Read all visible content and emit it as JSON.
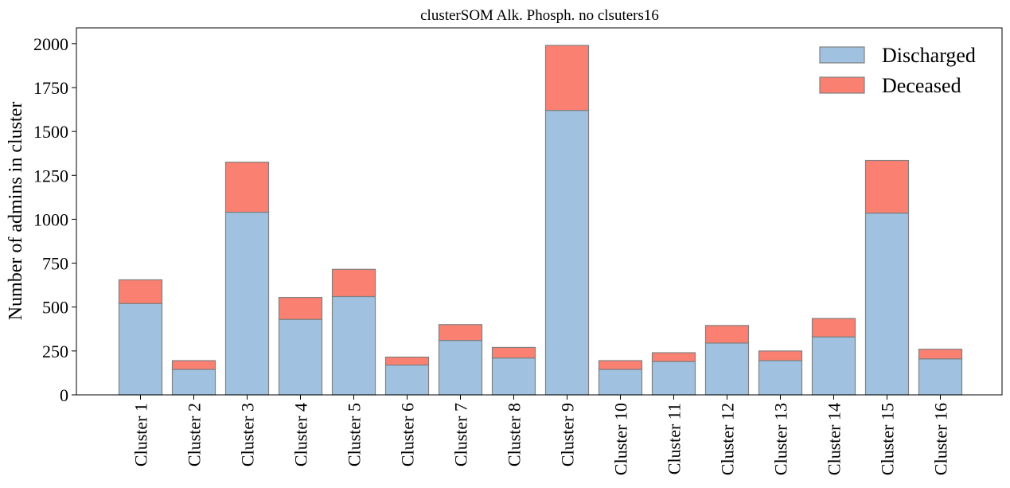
{
  "chart_data": {
    "type": "bar",
    "stacked": true,
    "title": "clusterSOM Alk. Phosph. no clsuters16",
    "xlabel": "",
    "ylabel": "Number of admins in cluster",
    "ylim": [
      0,
      2090
    ],
    "yticks": [
      0,
      250,
      500,
      750,
      1000,
      1250,
      1500,
      1750,
      2000
    ],
    "grid": false,
    "legend_position": "top-right",
    "categories": [
      "Cluster 1",
      "Cluster 2",
      "Cluster 3",
      "Cluster 4",
      "Cluster 5",
      "Cluster 6",
      "Cluster 7",
      "Cluster 8",
      "Cluster 9",
      "Cluster 10",
      "Cluster 11",
      "Cluster 12",
      "Cluster 13",
      "Cluster 14",
      "Cluster 15",
      "Cluster 16"
    ],
    "series": [
      {
        "name": "Discharged",
        "color": "#a0c2e0",
        "values": [
          520,
          145,
          1040,
          430,
          560,
          170,
          310,
          210,
          1620,
          145,
          190,
          295,
          195,
          330,
          1035,
          205
        ]
      },
      {
        "name": "Deceased",
        "color": "#fa8072",
        "values": [
          135,
          50,
          285,
          125,
          155,
          45,
          90,
          60,
          370,
          50,
          50,
          100,
          55,
          105,
          300,
          55
        ]
      }
    ],
    "edge_color": "#808080"
  }
}
